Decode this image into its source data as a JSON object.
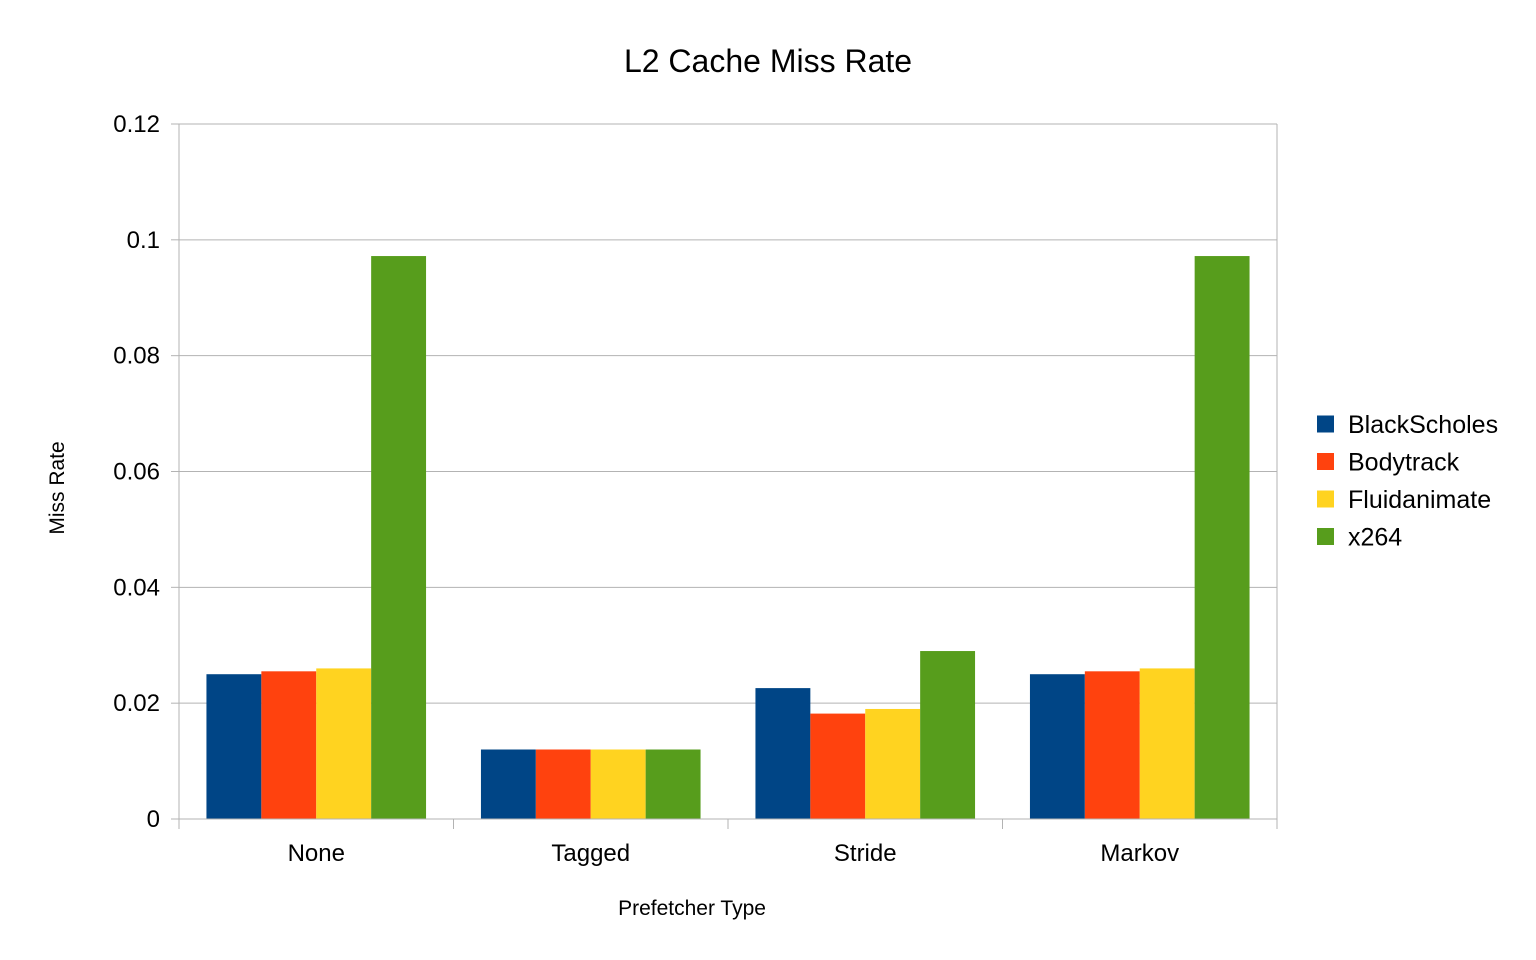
{
  "chart_data": {
    "type": "bar",
    "title": "L2 Cache Miss Rate",
    "xlabel": "Prefetcher Type",
    "ylabel": "Miss Rate",
    "categories": [
      "None",
      "Tagged",
      "Stride",
      "Markov"
    ],
    "ylim": [
      0,
      0.12
    ],
    "yticks": [
      0,
      0.02,
      0.04,
      0.06,
      0.08,
      0.1,
      0.12
    ],
    "ytick_labels": [
      "0",
      "0.02",
      "0.04",
      "0.06",
      "0.08",
      "0.1",
      "0.12"
    ],
    "grid": true,
    "legend_position": "right",
    "series": [
      {
        "name": "BlackScholes",
        "color": "#004586",
        "values": [
          0.025,
          0.012,
          0.0226,
          0.025
        ]
      },
      {
        "name": "Bodytrack",
        "color": "#ff420e",
        "values": [
          0.0255,
          0.012,
          0.0182,
          0.0255
        ]
      },
      {
        "name": "Fluidanimate",
        "color": "#ffd320",
        "values": [
          0.026,
          0.012,
          0.019,
          0.026
        ]
      },
      {
        "name": "x264",
        "color": "#579d1c",
        "values": [
          0.0972,
          0.012,
          0.029,
          0.0972
        ]
      }
    ]
  }
}
